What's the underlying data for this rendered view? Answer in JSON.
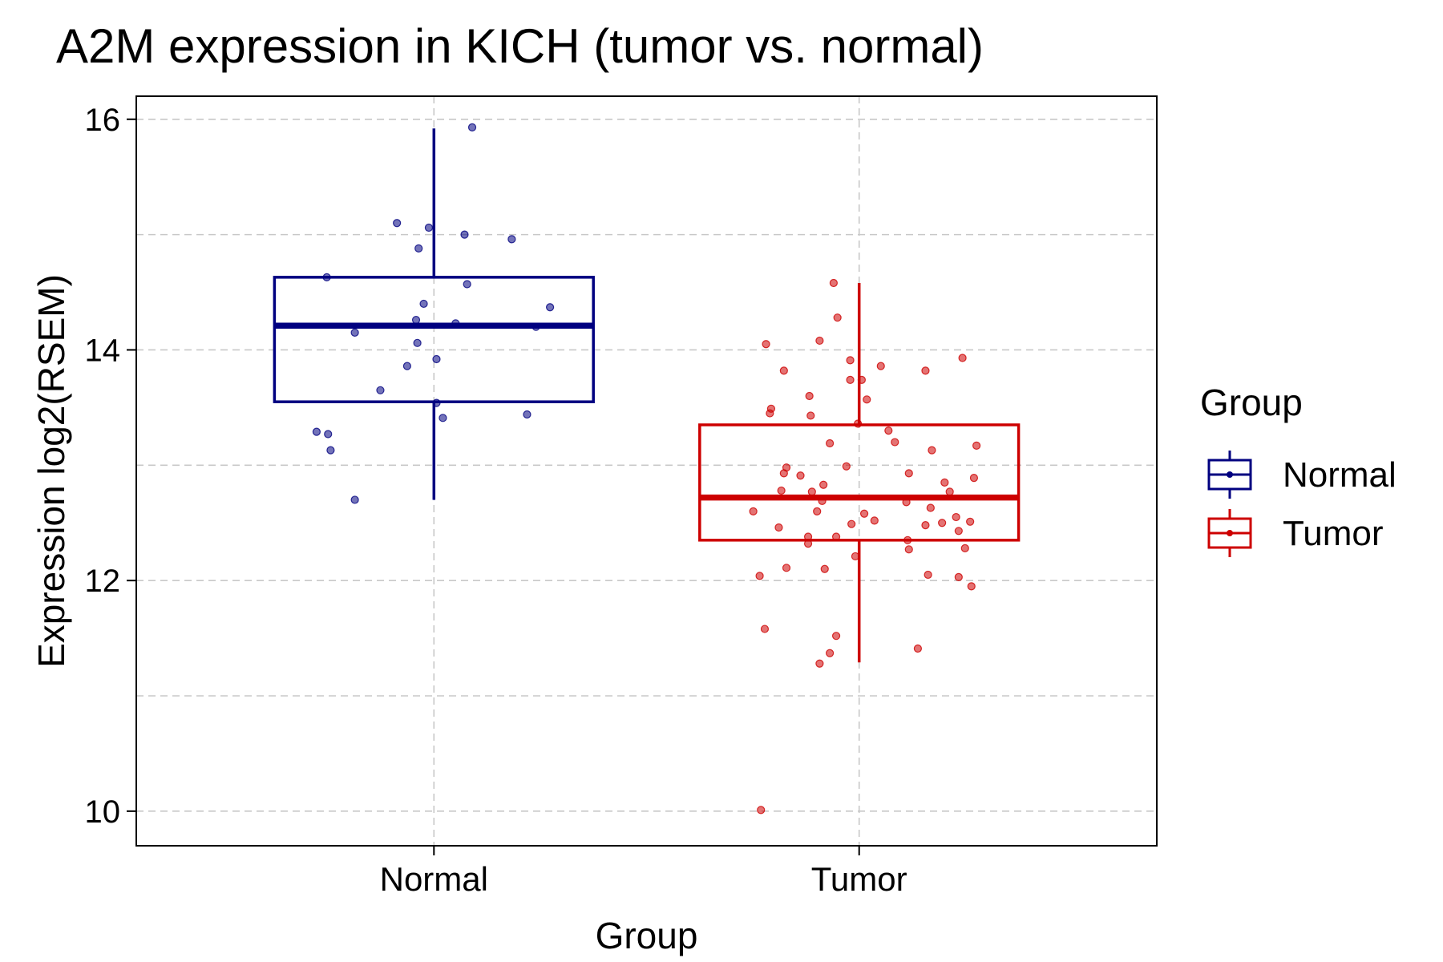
{
  "chart_data": {
    "type": "box",
    "title": "A2M expression in KICH (tumor vs. normal)",
    "xlabel": "Group",
    "ylabel": "Expression log2(RSEM)",
    "ylim": [
      9.7,
      16.2
    ],
    "yticks": [
      10,
      12,
      14,
      16
    ],
    "grid": true,
    "legend": {
      "title": "Group",
      "position": "right"
    },
    "categories": [
      "Normal",
      "Tumor"
    ],
    "colors": {
      "Normal": "#000080",
      "Tumor": "#CD0000"
    },
    "series": [
      {
        "name": "Normal",
        "box": {
          "whisker_low": 12.7,
          "q1": 13.55,
          "median": 14.21,
          "q3": 14.63,
          "whisker_high": 15.92
        },
        "points": [
          [
            0.3,
            15.93
          ],
          [
            -0.29,
            15.1
          ],
          [
            -0.04,
            15.06
          ],
          [
            0.24,
            15.0
          ],
          [
            0.61,
            14.96
          ],
          [
            -0.12,
            14.88
          ],
          [
            -0.84,
            14.63
          ],
          [
            0.26,
            14.57
          ],
          [
            -0.08,
            14.4
          ],
          [
            0.91,
            14.37
          ],
          [
            -0.14,
            14.26
          ],
          [
            0.17,
            14.23
          ],
          [
            0.8,
            14.2
          ],
          [
            -0.62,
            14.15
          ],
          [
            -0.13,
            14.06
          ],
          [
            0.02,
            13.92
          ],
          [
            -0.21,
            13.86
          ],
          [
            -0.42,
            13.65
          ],
          [
            0.02,
            13.54
          ],
          [
            0.73,
            13.44
          ],
          [
            0.07,
            13.41
          ],
          [
            -0.92,
            13.29
          ],
          [
            -0.83,
            13.27
          ],
          [
            -0.81,
            13.13
          ],
          [
            -0.62,
            12.7
          ]
        ]
      },
      {
        "name": "Tumor",
        "box": {
          "whisker_low": 11.29,
          "q1": 12.35,
          "median": 12.72,
          "q3": 13.35,
          "whisker_high": 14.58
        },
        "points": [
          [
            -0.2,
            14.58
          ],
          [
            -0.17,
            14.28
          ],
          [
            -0.31,
            14.08
          ],
          [
            -0.73,
            14.05
          ],
          [
            -0.07,
            13.91
          ],
          [
            0.81,
            13.93
          ],
          [
            0.17,
            13.86
          ],
          [
            -0.59,
            13.82
          ],
          [
            0.52,
            13.82
          ],
          [
            -0.07,
            13.74
          ],
          [
            0.02,
            13.74
          ],
          [
            0.06,
            13.57
          ],
          [
            -0.39,
            13.6
          ],
          [
            -0.69,
            13.49
          ],
          [
            -0.7,
            13.45
          ],
          [
            -0.38,
            13.43
          ],
          [
            -0.01,
            13.36
          ],
          [
            0.23,
            13.3
          ],
          [
            0.28,
            13.2
          ],
          [
            -0.23,
            13.19
          ],
          [
            0.92,
            13.17
          ],
          [
            0.57,
            13.13
          ],
          [
            -0.57,
            12.98
          ],
          [
            -0.1,
            12.99
          ],
          [
            0.39,
            12.93
          ],
          [
            -0.59,
            12.93
          ],
          [
            -0.46,
            12.91
          ],
          [
            0.9,
            12.89
          ],
          [
            -0.28,
            12.83
          ],
          [
            0.67,
            12.85
          ],
          [
            -0.61,
            12.78
          ],
          [
            -0.37,
            12.77
          ],
          [
            0.71,
            12.77
          ],
          [
            -0.29,
            12.69
          ],
          [
            0.37,
            12.68
          ],
          [
            0.56,
            12.63
          ],
          [
            -0.83,
            12.6
          ],
          [
            -0.33,
            12.6
          ],
          [
            0.04,
            12.58
          ],
          [
            0.76,
            12.55
          ],
          [
            0.12,
            12.52
          ],
          [
            -0.06,
            12.49
          ],
          [
            0.65,
            12.5
          ],
          [
            0.87,
            12.51
          ],
          [
            0.52,
            12.48
          ],
          [
            -0.63,
            12.46
          ],
          [
            0.78,
            12.43
          ],
          [
            -0.18,
            12.38
          ],
          [
            -0.4,
            12.38
          ],
          [
            -0.4,
            12.32
          ],
          [
            0.38,
            12.35
          ],
          [
            0.39,
            12.27
          ],
          [
            0.83,
            12.28
          ],
          [
            -0.03,
            12.21
          ],
          [
            -0.57,
            12.11
          ],
          [
            -0.27,
            12.1
          ],
          [
            -0.78,
            12.04
          ],
          [
            0.54,
            12.05
          ],
          [
            0.78,
            12.03
          ],
          [
            0.88,
            11.95
          ],
          [
            -0.74,
            11.58
          ],
          [
            -0.18,
            11.52
          ],
          [
            0.46,
            11.41
          ],
          [
            -0.23,
            11.37
          ],
          [
            -0.31,
            11.28
          ],
          [
            -0.77,
            10.01
          ]
        ]
      }
    ]
  }
}
